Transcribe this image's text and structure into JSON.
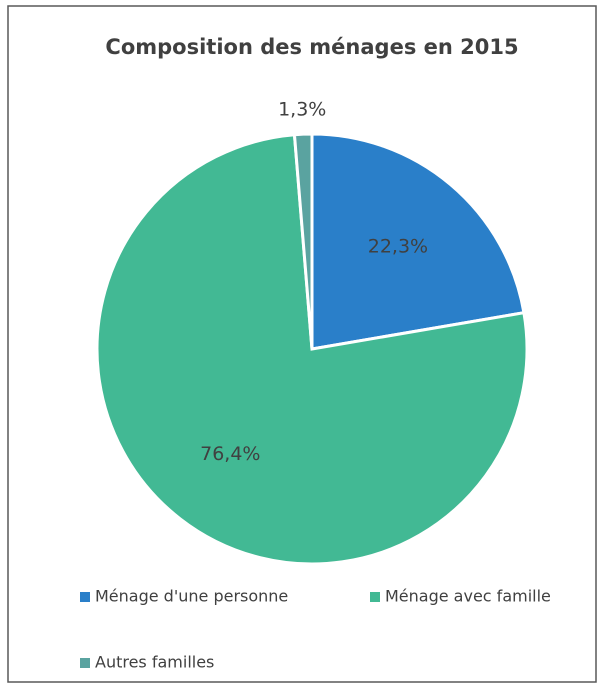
{
  "chart_data": {
    "type": "pie",
    "title": "Composition des ménages en 2015",
    "categories": [
      "Ménage d'une personne",
      "Ménage avec famille",
      "Autres familles"
    ],
    "values": [
      22.3,
      76.4,
      1.3
    ],
    "value_labels": [
      "22,3%",
      "76,4%",
      "1,3%"
    ],
    "colors": [
      "#2a7fc9",
      "#42b994",
      "#5aa3a0"
    ],
    "legend": "bottom"
  }
}
